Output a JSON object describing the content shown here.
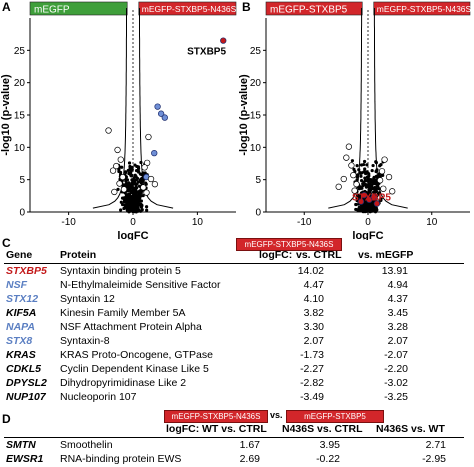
{
  "panels": {
    "A": "A",
    "B": "B",
    "C": "C",
    "D": "D"
  },
  "chart_data": [
    {
      "type": "scatter",
      "panel": "A",
      "xlabel": "logFC",
      "ylabel": "-log10 (p-value)",
      "xlim": [
        -16,
        16
      ],
      "ylim": [
        0,
        30
      ],
      "xticks": [
        -10,
        0,
        10
      ],
      "yticks": [
        0,
        5,
        10,
        15,
        20,
        25
      ],
      "banner_left": "mEGFP",
      "banner_left_color": "#3f9f3b",
      "banner_right": "mEGFP-STXBP5-N436S",
      "banner_right_color": "#d2262a",
      "annotations": [
        {
          "text": "STXBP5",
          "x": 14.0,
          "y": 24.5
        }
      ],
      "series": [
        {
          "color": "#c3191a",
          "points": [
            [
              14.02,
              26.5
            ]
          ]
        },
        {
          "color": "#6f8fd6",
          "points": [
            [
              4.37,
              15.2
            ],
            [
              4.94,
              14.6
            ],
            [
              3.82,
              16.3
            ],
            [
              3.3,
              9.1
            ],
            [
              2.07,
              5.4
            ]
          ]
        },
        {
          "color": "#ffffff",
          "points": [
            [
              -3.8,
              12.6
            ],
            [
              -2.4,
              9.6
            ],
            [
              -1.9,
              8.1
            ],
            [
              2.4,
              11.6
            ],
            [
              -2.6,
              7.1
            ],
            [
              2.2,
              7.6
            ],
            [
              -3.1,
              6.4
            ],
            [
              1.8,
              6.9
            ],
            [
              -1.6,
              5.4
            ],
            [
              2.8,
              5.1
            ],
            [
              -2.1,
              4.4
            ],
            [
              3.4,
              4.3
            ],
            [
              -1.4,
              3.5
            ],
            [
              1.6,
              3.8
            ],
            [
              2.1,
              3.0
            ],
            [
              -2.9,
              3.1
            ]
          ]
        }
      ]
    },
    {
      "type": "scatter",
      "panel": "B",
      "xlabel": "logFC",
      "ylabel": "-log10 (p-value)",
      "xlim": [
        -16,
        16
      ],
      "ylim": [
        0,
        30
      ],
      "xticks": [
        -10,
        0,
        10
      ],
      "yticks": [
        0,
        5,
        10,
        15,
        20,
        25
      ],
      "banner_left": "mEGFP-STXBP5",
      "banner_left_color": "#d2262a",
      "banner_right": "mEGFP-STXBP5-N436S",
      "banner_right_color": "#d2262a",
      "annotations": [
        {
          "text": "STXBP5",
          "x": 0.0,
          "y": 1.5
        }
      ],
      "series": [
        {
          "color": "#c3191a",
          "points": [
            [
              0.2,
              1.9
            ],
            [
              -0.6,
              2.6
            ],
            [
              0.9,
              2.3
            ],
            [
              -1.1,
              1.6
            ],
            [
              1.4,
              1.3
            ]
          ]
        },
        {
          "color": "#ffffff",
          "points": [
            [
              -3.0,
              10.1
            ],
            [
              -2.6,
              7.2
            ],
            [
              -3.4,
              8.4
            ],
            [
              -2.3,
              5.7
            ],
            [
              -1.8,
              4.3
            ],
            [
              -2.1,
              3.3
            ],
            [
              -3.8,
              5.1
            ],
            [
              2.6,
              8.1
            ],
            [
              2.2,
              6.3
            ],
            [
              3.3,
              5.4
            ],
            [
              1.9,
              4.9
            ],
            [
              2.4,
              3.6
            ],
            [
              3.8,
              3.2
            ],
            [
              -4.6,
              3.9
            ]
          ]
        }
      ]
    }
  ],
  "table_c": {
    "col_gene": "Gene",
    "col_protein": "Protein",
    "col_logfc": "logFC:",
    "col_ctrl": "vs. CTRL",
    "col_megfp": "vs. mEGFP",
    "header_box": "mEGFP-STXBP5-N436S",
    "rows": [
      {
        "gene": "STXBP5",
        "color": "red",
        "protein": "Syntaxin binding protein 5",
        "ctrl": "14.02",
        "megfp": "13.91"
      },
      {
        "gene": "NSF",
        "color": "blue",
        "protein": "N-Ethylmaleimide Sensitive Factor",
        "ctrl": "4.47",
        "megfp": "4.94"
      },
      {
        "gene": "STX12",
        "color": "blue",
        "protein": "Syntaxin 12",
        "ctrl": "4.10",
        "megfp": "4.37"
      },
      {
        "gene": "KIF5A",
        "color": "black",
        "protein": "Kinesin Family Member 5A",
        "ctrl": "3.82",
        "megfp": "3.45"
      },
      {
        "gene": "NAPA",
        "color": "blue",
        "protein": "NSF Attachment Protein Alpha",
        "ctrl": "3.30",
        "megfp": "3.28"
      },
      {
        "gene": "STX8",
        "color": "blue",
        "protein": "Syntaxin-8",
        "ctrl": "2.07",
        "megfp": "2.07"
      },
      {
        "gene": "KRAS",
        "color": "black",
        "protein": "KRAS Proto-Oncogene, GTPase",
        "ctrl": "-1.73",
        "megfp": "-2.07"
      },
      {
        "gene": "CDKL5",
        "color": "black",
        "protein": "Cyclin Dependent Kinase Like 5",
        "ctrl": "-2.27",
        "megfp": "-2.20"
      },
      {
        "gene": "DPYSL2",
        "color": "black",
        "protein": "Dihydropyrimidinase Like 2",
        "ctrl": "-2.82",
        "megfp": "-3.02"
      },
      {
        "gene": "NUP107",
        "color": "black",
        "protein": "Nucleoporin 107",
        "ctrl": "-3.49",
        "megfp": "-3.25"
      }
    ]
  },
  "table_d": {
    "box1": "mEGFP-STXBP5-N436S",
    "vs": "vs.",
    "box2": "mEGFP-STXBP5",
    "col_logfc": "logFC:",
    "col_wt_ctrl": "WT vs. CTRL",
    "col_n436s_ctrl": "N436S vs. CTRL",
    "col_n436s_wt": "N436S vs. WT",
    "rows": [
      {
        "gene": "SMTN",
        "protein": "Smoothelin",
        "wt_ctrl": "1.67",
        "n436s_ctrl": "3.95",
        "n436s_wt": "2.71"
      },
      {
        "gene": "EWSR1",
        "protein": "RNA-binding protein EWS",
        "wt_ctrl": "2.69",
        "n436s_ctrl": "-0.22",
        "n436s_wt": "-2.95"
      }
    ]
  }
}
